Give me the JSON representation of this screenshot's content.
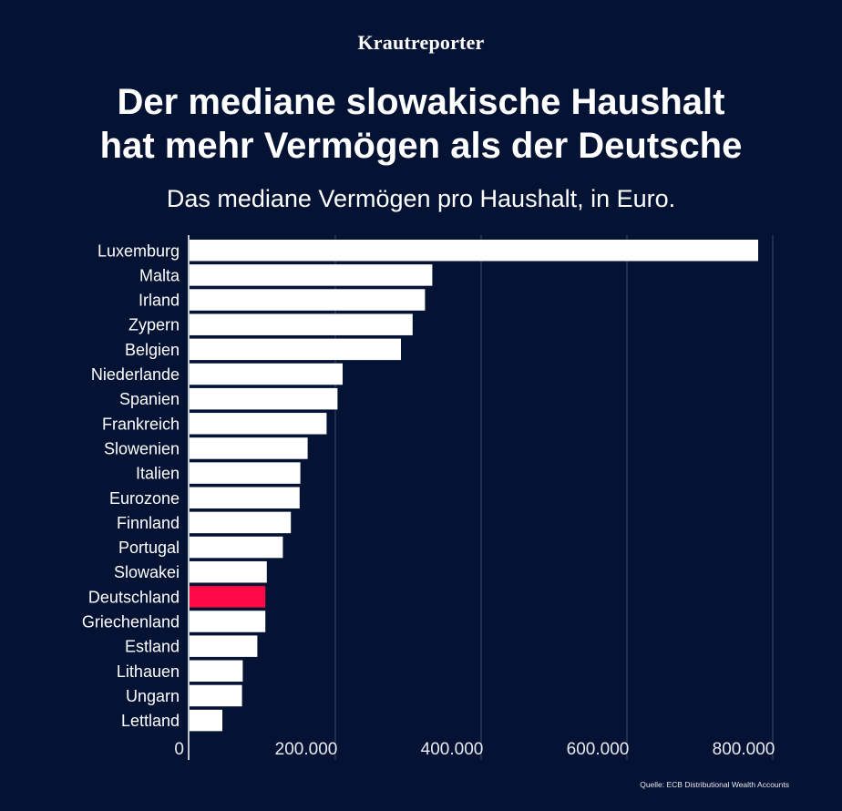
{
  "brand": "Krautreporter",
  "title_line1": "Der mediane slowakische Haushalt",
  "title_line2": "hat mehr Vermögen als der Deutsche",
  "subtitle": "Das mediane Vermögen pro Haushalt, in Euro.",
  "source": "Quelle: ECB Distributional Wealth Accounts",
  "chart_data": {
    "type": "bar",
    "orientation": "horizontal",
    "categories": [
      "Luxemburg",
      "Malta",
      "Irland",
      "Zypern",
      "Belgien",
      "Niederlande",
      "Spanien",
      "Frankreich",
      "Slowenien",
      "Italien",
      "Eurozone",
      "Finnland",
      "Portugal",
      "Slowakei",
      "Deutschland",
      "Griechenland",
      "Estland",
      "Lithauen",
      "Ungarn",
      "Lettland"
    ],
    "values": [
      780000,
      333000,
      323000,
      306000,
      290000,
      210000,
      203000,
      188000,
      162000,
      152000,
      151000,
      139000,
      128000,
      106000,
      104000,
      104000,
      93000,
      73000,
      72000,
      45000
    ],
    "highlight": "Deutschland",
    "xlim": [
      0,
      800000
    ],
    "xticks": [
      0,
      200000,
      400000,
      600000,
      800000
    ],
    "xtick_labels": [
      "0",
      "200.000",
      "400.000",
      "600.000",
      "800.000"
    ],
    "grid": true,
    "title": "Der mediane slowakische Haushalt hat mehr Vermögen als der Deutsche",
    "subtitle": "Das mediane Vermögen pro Haushalt, in Euro.",
    "colors": {
      "bar": "#ffffff",
      "highlight": "#ff0a47",
      "grid": "#3a4566",
      "background": "#041233"
    }
  }
}
